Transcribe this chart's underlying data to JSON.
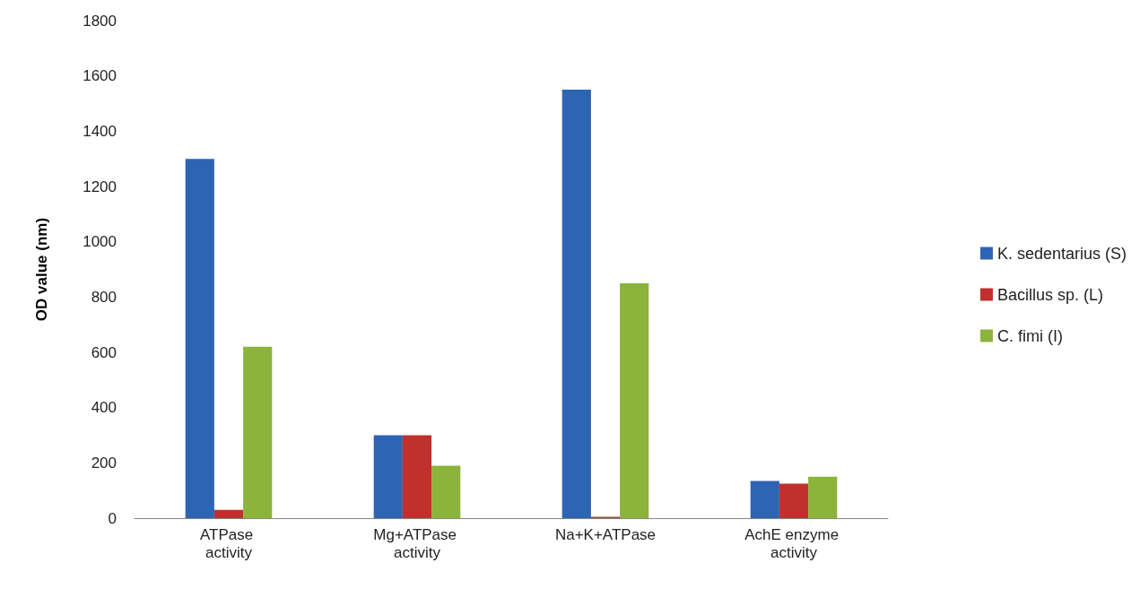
{
  "chart_data": {
    "type": "bar",
    "ylabel": "OD value (nm)",
    "categories": [
      "ATPase activity",
      "Mg+ATPase activity",
      "Na+K+ATPase",
      "AchE enzyme activity"
    ],
    "series": [
      {
        "name": "K. sedentarius (S)",
        "color": "#2e64b4",
        "values": [
          1300,
          300,
          1550,
          135
        ]
      },
      {
        "name": "Bacillus sp. (L)",
        "color": "#c0302d",
        "values": [
          30,
          300,
          5,
          125
        ]
      },
      {
        "name": "C. fimi (I)",
        "color": "#8cb33c",
        "values": [
          620,
          190,
          850,
          150
        ]
      }
    ],
    "ylim": [
      0,
      1800
    ],
    "yticks": [
      0,
      200,
      400,
      600,
      800,
      1000,
      1200,
      1400,
      1600,
      1800
    ],
    "grid": false,
    "legend": "right"
  }
}
